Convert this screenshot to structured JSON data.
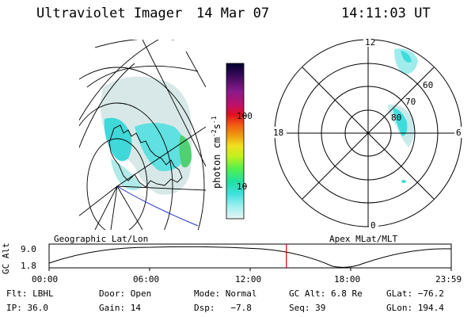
{
  "header": {
    "instrument": "Ultraviolet Imager",
    "date": "14 Mar 07",
    "time": "14:11:03 UT"
  },
  "colorbar": {
    "label": "photon cm-2s-1",
    "label_main": "photon cm",
    "label_exp1": "-2",
    "label_mid": "s",
    "label_exp2": "-1",
    "ticks": [
      "100",
      "10"
    ],
    "scale": "log",
    "colors": [
      "#000030",
      "#4a0a6a",
      "#8a1a8a",
      "#c0106a",
      "#e0101a",
      "#f06010",
      "#f0a010",
      "#f0e020",
      "#c0f020",
      "#60f040",
      "#20e0a0",
      "#40e0e0",
      "#a0f0f0",
      "#e8f4f4"
    ]
  },
  "polar_plot": {
    "mlt_labels": {
      "top": "12",
      "left": "18",
      "right": "6",
      "bottom": "0"
    },
    "lat_labels": [
      "60",
      "70",
      "80"
    ]
  },
  "timeline": {
    "left_label": "Geographic Lat/Lon",
    "right_label": "Apex MLat/MLT",
    "y_axis_label": "GC Alt",
    "y_ticks": [
      "9.0",
      "1.8"
    ],
    "x_ticks": [
      "00:00",
      "06:00",
      "12:00",
      "18:00",
      "23:59"
    ],
    "current_time_fraction": 0.59,
    "colors": {
      "marker": "#cc0000"
    }
  },
  "info": {
    "row1": [
      "Flt: LBHL",
      "Door: Open",
      "Mode: Normal",
      "GC Alt: 6.8 Re",
      "GLat: −76.2"
    ],
    "row2": [
      "IP: 36.0",
      "Gain: 14",
      "Dsp:   −7.8",
      "Seq: 39",
      "GLon: 194.4"
    ]
  }
}
